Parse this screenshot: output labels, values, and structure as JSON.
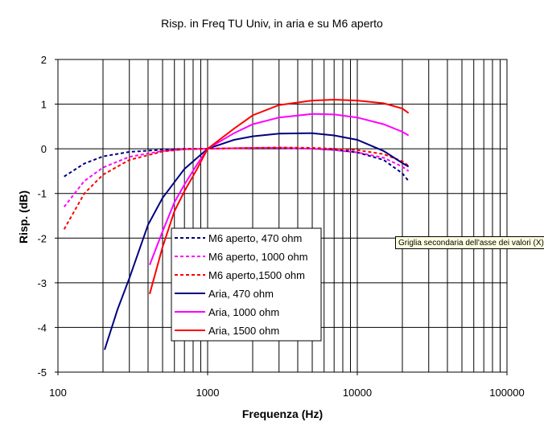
{
  "chart_data": {
    "type": "line",
    "title": "Risp. in Freq TU Univ, in aria e su M6 aperto",
    "xlabel": "Frequenza (Hz)",
    "ylabel": "Risp. (dB)",
    "x_scale": "log",
    "xlim": [
      100,
      100000
    ],
    "ylim": [
      -5,
      2
    ],
    "x_ticks": [
      "100",
      "1000",
      "10000",
      "100000"
    ],
    "y_ticks": [
      "2",
      "1",
      "0",
      "-1",
      "-2",
      "-3",
      "-4",
      "-5"
    ],
    "grid": {
      "major_y": true,
      "x_major": true,
      "x_minor": true
    },
    "legend_position": "center-left",
    "series": [
      {
        "name": "M6 aperto, 470 ohm",
        "color": "#000080",
        "dash": true,
        "x": [
          110,
          150,
          200,
          300,
          500,
          700,
          1000,
          2000,
          3000,
          5000,
          7000,
          10000,
          15000,
          20000,
          22000
        ],
        "y": [
          -0.62,
          -0.33,
          -0.17,
          -0.07,
          -0.02,
          0.0,
          0.0,
          0.02,
          0.02,
          0.01,
          -0.02,
          -0.08,
          -0.25,
          -0.55,
          -0.72
        ]
      },
      {
        "name": "M6 aperto, 1000 ohm",
        "color": "#ff00ff",
        "dash": true,
        "x": [
          110,
          150,
          200,
          300,
          500,
          700,
          1000,
          2000,
          3000,
          5000,
          7000,
          10000,
          15000,
          20000,
          22000
        ],
        "y": [
          -1.3,
          -0.72,
          -0.42,
          -0.18,
          -0.05,
          -0.01,
          0.0,
          0.02,
          0.02,
          0.0,
          -0.03,
          -0.08,
          -0.2,
          -0.4,
          -0.5
        ]
      },
      {
        "name": "M6 aperto,1500 ohm",
        "color": "#ff0000",
        "dash": true,
        "x": [
          110,
          150,
          200,
          300,
          500,
          700,
          1000,
          2000,
          3000,
          5000,
          7000,
          10000,
          15000,
          20000,
          22000
        ],
        "y": [
          -1.8,
          -1.0,
          -0.58,
          -0.25,
          -0.06,
          -0.01,
          0.0,
          0.02,
          0.03,
          0.02,
          0.0,
          -0.03,
          -0.12,
          -0.28,
          -0.38
        ]
      },
      {
        "name": "Aria, 470 ohm",
        "color": "#000080",
        "dash": false,
        "x": [
          205,
          250,
          300,
          400,
          500,
          700,
          1000,
          1500,
          2000,
          3000,
          5000,
          7000,
          10000,
          15000,
          20000,
          22000
        ],
        "y": [
          -4.5,
          -3.6,
          -2.9,
          -1.7,
          -1.1,
          -0.45,
          0.0,
          0.2,
          0.28,
          0.34,
          0.35,
          0.3,
          0.2,
          -0.05,
          -0.32,
          -0.4
        ]
      },
      {
        "name": "Aria, 1000 ohm",
        "color": "#ff00ff",
        "dash": false,
        "x": [
          410,
          500,
          600,
          700,
          850,
          1000,
          1500,
          2000,
          3000,
          5000,
          7000,
          10000,
          15000,
          20000,
          22000
        ],
        "y": [
          -2.6,
          -1.85,
          -1.2,
          -0.8,
          -0.35,
          0.0,
          0.35,
          0.55,
          0.7,
          0.78,
          0.77,
          0.7,
          0.55,
          0.38,
          0.3
        ]
      },
      {
        "name": "Aria, 1500 ohm",
        "color": "#ff0000",
        "dash": false,
        "x": [
          410,
          500,
          600,
          700,
          850,
          1000,
          1500,
          2000,
          3000,
          5000,
          7000,
          10000,
          15000,
          20000,
          22000
        ],
        "y": [
          -3.25,
          -2.2,
          -1.4,
          -0.95,
          -0.45,
          0.0,
          0.45,
          0.75,
          0.98,
          1.08,
          1.1,
          1.08,
          1.02,
          0.9,
          0.8
        ]
      }
    ]
  },
  "tooltip_text": "Griglia secondaria dell'asse dei valori (X)"
}
